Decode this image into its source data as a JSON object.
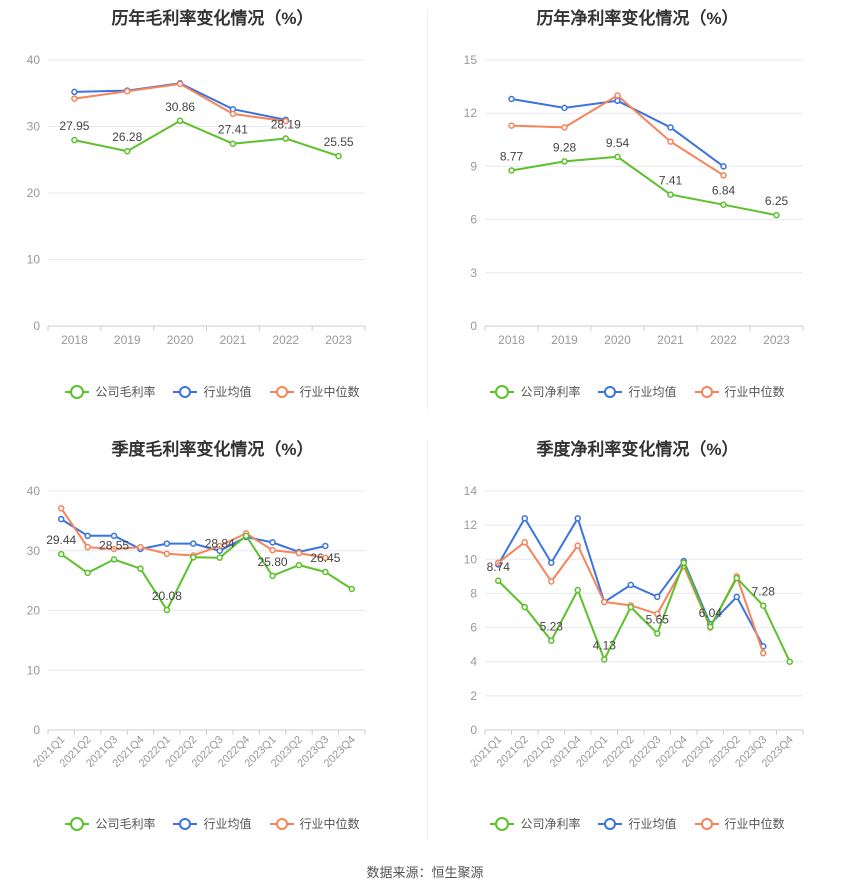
{
  "source_label": "数据来源：恒生聚源",
  "colors": {
    "company": "#5cc12a",
    "avg": "#3b73e0",
    "median": "#f6845a",
    "grid": "#e8e8ee",
    "axis": "#999999"
  },
  "chart_data": [
    {
      "id": "annual-gross",
      "type": "line",
      "title": "历年毛利率变化情况（%）",
      "categories": [
        "2018",
        "2019",
        "2020",
        "2021",
        "2022",
        "2023"
      ],
      "ylim": [
        0,
        40
      ],
      "yticks": [
        "0",
        "10",
        "20",
        "30",
        "40"
      ],
      "grid": true,
      "legend": "bottom",
      "series": [
        {
          "name": "公司毛利率",
          "role": "company",
          "values": [
            27.95,
            26.28,
            30.86,
            27.41,
            28.19,
            25.55
          ],
          "labels": [
            "27.95",
            "26.28",
            "30.86",
            "27.41",
            "28.19",
            "25.55"
          ]
        },
        {
          "name": "行业均值",
          "role": "avg",
          "values": [
            35.2,
            35.4,
            36.5,
            32.6,
            31.0,
            null
          ]
        },
        {
          "name": "行业中位数",
          "role": "median",
          "values": [
            34.2,
            35.3,
            36.4,
            31.9,
            30.8,
            null
          ]
        }
      ]
    },
    {
      "id": "annual-net",
      "type": "line",
      "title": "历年净利率变化情况（%）",
      "categories": [
        "2018",
        "2019",
        "2020",
        "2021",
        "2022",
        "2023"
      ],
      "ylim": [
        0,
        15
      ],
      "yticks": [
        "0",
        "3",
        "6",
        "9",
        "12",
        "15"
      ],
      "grid": true,
      "legend": "bottom",
      "series": [
        {
          "name": "公司净利率",
          "role": "company",
          "values": [
            8.77,
            9.28,
            9.54,
            7.41,
            6.84,
            6.25
          ],
          "labels": [
            "8.77",
            "9.28",
            "9.54",
            "7.41",
            "6.84",
            "6.25"
          ]
        },
        {
          "name": "行业均值",
          "role": "avg",
          "values": [
            12.8,
            12.3,
            12.7,
            11.2,
            9.0,
            null
          ]
        },
        {
          "name": "行业中位数",
          "role": "median",
          "values": [
            11.3,
            11.2,
            13.0,
            10.4,
            8.5,
            null
          ]
        }
      ]
    },
    {
      "id": "quarterly-gross",
      "type": "line",
      "title": "季度毛利率变化情况（%）",
      "categories": [
        "2021Q1",
        "2021Q2",
        "2021Q3",
        "2021Q4",
        "2022Q1",
        "2022Q2",
        "2022Q3",
        "2022Q4",
        "2023Q1",
        "2023Q2",
        "2023Q3",
        "2023Q4"
      ],
      "ylim": [
        0,
        40
      ],
      "yticks": [
        "0",
        "10",
        "20",
        "30",
        "40"
      ],
      "grid": true,
      "legend": "bottom",
      "series": [
        {
          "name": "公司毛利率",
          "role": "company",
          "values": [
            29.44,
            26.3,
            28.55,
            27.0,
            20.08,
            28.9,
            28.84,
            32.5,
            25.8,
            27.6,
            26.45,
            23.6
          ],
          "labels": [
            "29.44",
            "",
            "28.55",
            "",
            "20.08",
            "",
            "28.84",
            "",
            "25.80",
            "",
            "26.45",
            ""
          ]
        },
        {
          "name": "行业均值",
          "role": "avg",
          "values": [
            35.3,
            32.5,
            32.5,
            30.3,
            31.2,
            31.2,
            30.0,
            32.3,
            31.4,
            29.8,
            30.8,
            null
          ]
        },
        {
          "name": "行业中位数",
          "role": "median",
          "values": [
            37.1,
            30.6,
            30.3,
            30.6,
            29.5,
            29.2,
            30.8,
            32.9,
            30.1,
            29.6,
            28.8,
            null
          ]
        }
      ]
    },
    {
      "id": "quarterly-net",
      "type": "line",
      "title": "季度净利率变化情况（%）",
      "categories": [
        "2021Q1",
        "2021Q2",
        "2021Q3",
        "2021Q4",
        "2022Q1",
        "2022Q2",
        "2022Q3",
        "2022Q4",
        "2023Q1",
        "2023Q2",
        "2023Q3",
        "2023Q4"
      ],
      "ylim": [
        0,
        14
      ],
      "yticks": [
        "0",
        "2",
        "4",
        "6",
        "8",
        "10",
        "12",
        "14"
      ],
      "grid": true,
      "legend": "bottom",
      "series": [
        {
          "name": "公司净利率",
          "role": "company",
          "values": [
            8.74,
            7.2,
            5.23,
            8.2,
            4.13,
            7.2,
            5.65,
            9.8,
            6.04,
            8.9,
            7.28,
            4.0
          ],
          "labels": [
            "8.74",
            "",
            "5.23",
            "",
            "4.13",
            "",
            "5.65",
            "",
            "6.04",
            "",
            "7.28",
            ""
          ]
        },
        {
          "name": "行业均值",
          "role": "avg",
          "values": [
            9.7,
            12.4,
            9.8,
            12.4,
            7.5,
            8.5,
            7.8,
            9.9,
            6.2,
            7.8,
            4.9,
            null
          ]
        },
        {
          "name": "行业中位数",
          "role": "median",
          "values": [
            9.8,
            11.0,
            8.7,
            10.8,
            7.5,
            7.3,
            6.8,
            9.6,
            6.0,
            9.0,
            4.5,
            null
          ]
        }
      ]
    }
  ]
}
